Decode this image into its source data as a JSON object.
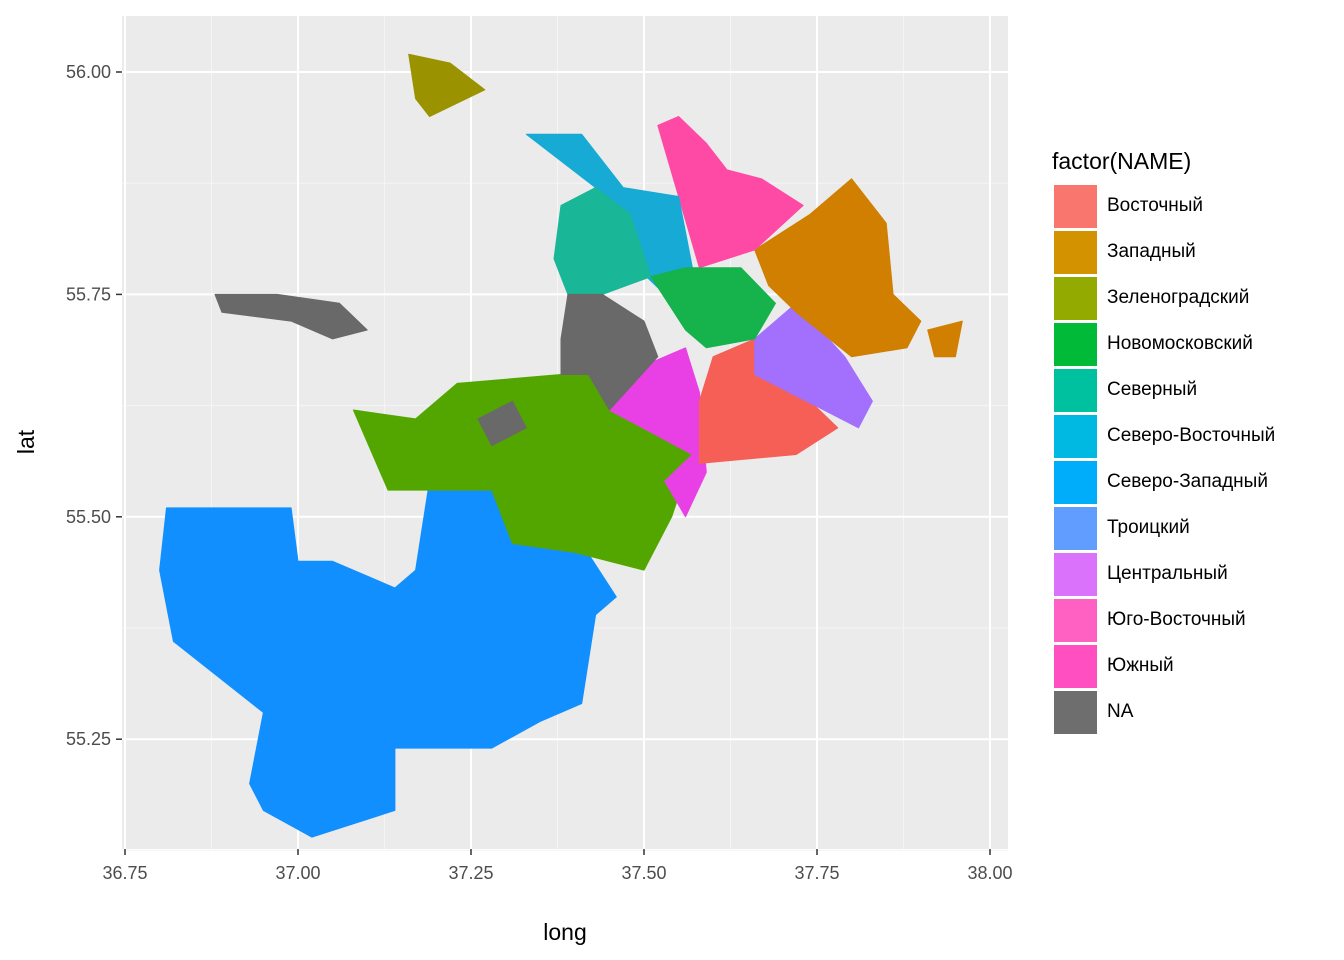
{
  "chart_data": {
    "type": "map",
    "title": "",
    "xlabel": "long",
    "ylabel": "lat",
    "xlim": [
      36.75,
      38.0
    ],
    "ylim": [
      55.12,
      56.06
    ],
    "x_ticks": [
      "36.75",
      "37.00",
      "37.25",
      "37.50",
      "37.75",
      "38.00"
    ],
    "y_ticks": [
      "55.25",
      "55.50",
      "55.75",
      "56.00"
    ],
    "grid": true,
    "legend_position": "right",
    "legend_title": "factor(NAME)",
    "legend": [
      {
        "name": "Восточный",
        "color": "#F8766D"
      },
      {
        "name": "Западный",
        "color": "#D39200"
      },
      {
        "name": "Зеленоградский",
        "color": "#93AA00"
      },
      {
        "name": "Новомосковский",
        "color": "#00BA38"
      },
      {
        "name": "Северный",
        "color": "#00C19F"
      },
      {
        "name": "Северо-Восточный",
        "color": "#00B9E3"
      },
      {
        "name": "Северо-Западный",
        "color": "#00ADFA"
      },
      {
        "name": "Троицкий",
        "color": "#619CFF"
      },
      {
        "name": "Центральный",
        "color": "#DB72FB"
      },
      {
        "name": "Юго-Восточный",
        "color": "#FF61C3"
      },
      {
        "name": "Южный",
        "color": "#FF4FC0"
      },
      {
        "name": "NA",
        "color": "#6E6E6E"
      }
    ],
    "regions": [
      {
        "name": "Троицкий",
        "fill": "#118FFF",
        "coords": [
          [
            36.81,
            55.51
          ],
          [
            36.99,
            55.51
          ],
          [
            37.0,
            55.45
          ],
          [
            37.05,
            55.45
          ],
          [
            37.14,
            55.42
          ],
          [
            37.17,
            55.44
          ],
          [
            37.19,
            55.54
          ],
          [
            37.4,
            55.54
          ],
          [
            37.41,
            55.47
          ],
          [
            37.46,
            55.41
          ],
          [
            37.43,
            55.39
          ],
          [
            37.41,
            55.29
          ],
          [
            37.35,
            55.27
          ],
          [
            37.28,
            55.24
          ],
          [
            37.14,
            55.24
          ],
          [
            37.14,
            55.17
          ],
          [
            37.02,
            55.14
          ],
          [
            36.95,
            55.17
          ],
          [
            36.93,
            55.2
          ],
          [
            36.95,
            55.28
          ],
          [
            36.82,
            55.36
          ],
          [
            36.8,
            55.44
          ]
        ]
      },
      {
        "name": "Новомосковский",
        "fill": "#53A600",
        "coords": [
          [
            37.08,
            55.62
          ],
          [
            37.17,
            55.61
          ],
          [
            37.23,
            55.65
          ],
          [
            37.38,
            55.66
          ],
          [
            37.42,
            55.66
          ],
          [
            37.45,
            55.62
          ],
          [
            37.57,
            55.57
          ],
          [
            37.54,
            55.5
          ],
          [
            37.5,
            55.44
          ],
          [
            37.4,
            55.46
          ],
          [
            37.31,
            55.47
          ],
          [
            37.28,
            55.53
          ],
          [
            37.13,
            55.53
          ]
        ]
      },
      {
        "name": "Юго-Восточный",
        "fill": "#E940E6",
        "coords": [
          [
            37.45,
            55.62
          ],
          [
            37.5,
            55.67
          ],
          [
            37.56,
            55.69
          ],
          [
            37.58,
            55.64
          ],
          [
            37.59,
            55.55
          ],
          [
            37.56,
            55.5
          ],
          [
            37.53,
            55.54
          ],
          [
            37.57,
            55.57
          ]
        ]
      },
      {
        "name": "Восточный",
        "fill": "#F55F55",
        "coords": [
          [
            37.6,
            55.68
          ],
          [
            37.66,
            55.7
          ],
          [
            37.71,
            55.68
          ],
          [
            37.7,
            55.66
          ],
          [
            37.78,
            55.6
          ],
          [
            37.72,
            55.57
          ],
          [
            37.58,
            55.56
          ],
          [
            37.58,
            55.63
          ]
        ]
      },
      {
        "name": "Центральный",
        "fill": "#A270FC",
        "coords": [
          [
            37.66,
            55.7
          ],
          [
            37.72,
            55.74
          ],
          [
            37.79,
            55.68
          ],
          [
            37.83,
            55.63
          ],
          [
            37.81,
            55.6
          ],
          [
            37.71,
            55.64
          ],
          [
            37.66,
            55.66
          ]
        ]
      },
      {
        "name": "Западный",
        "fill": "#D07F00",
        "coords": [
          [
            37.66,
            55.8
          ],
          [
            37.74,
            55.84
          ],
          [
            37.8,
            55.88
          ],
          [
            37.85,
            55.83
          ],
          [
            37.86,
            55.75
          ],
          [
            37.9,
            55.72
          ],
          [
            37.88,
            55.69
          ],
          [
            37.8,
            55.68
          ],
          [
            37.72,
            55.73
          ],
          [
            37.68,
            55.76
          ]
        ]
      },
      {
        "name": "Южный",
        "fill": "#FF4AA5",
        "coords": [
          [
            37.52,
            55.94
          ],
          [
            37.55,
            55.95
          ],
          [
            37.59,
            55.92
          ],
          [
            37.62,
            55.89
          ],
          [
            37.67,
            55.88
          ],
          [
            37.73,
            55.85
          ],
          [
            37.66,
            55.8
          ],
          [
            37.58,
            55.78
          ],
          [
            37.55,
            55.86
          ]
        ]
      },
      {
        "name": "Северо-Западный",
        "fill": "#16AAD4",
        "coords": [
          [
            37.33,
            55.93
          ],
          [
            37.41,
            55.93
          ],
          [
            37.47,
            55.87
          ],
          [
            37.55,
            55.86
          ],
          [
            37.57,
            55.78
          ],
          [
            37.53,
            55.75
          ],
          [
            37.49,
            55.78
          ],
          [
            37.48,
            55.84
          ]
        ]
      },
      {
        "name": "Северо-Восточный",
        "fill": "#19B797",
        "coords": [
          [
            37.38,
            55.85
          ],
          [
            37.43,
            55.87
          ],
          [
            37.48,
            55.84
          ],
          [
            37.51,
            55.77
          ],
          [
            37.44,
            55.75
          ],
          [
            37.39,
            55.75
          ],
          [
            37.37,
            55.79
          ]
        ]
      },
      {
        "name": "Северный",
        "fill": "#16B24C",
        "coords": [
          [
            37.51,
            55.77
          ],
          [
            37.56,
            55.78
          ],
          [
            37.64,
            55.78
          ],
          [
            37.69,
            55.74
          ],
          [
            37.66,
            55.7
          ],
          [
            37.59,
            55.69
          ],
          [
            37.56,
            55.71
          ]
        ]
      },
      {
        "name": "Зеленоградский",
        "fill": "#9B9200",
        "coords": [
          [
            37.16,
            56.02
          ],
          [
            37.22,
            56.01
          ],
          [
            37.27,
            55.98
          ],
          [
            37.19,
            55.95
          ],
          [
            37.17,
            55.97
          ]
        ]
      },
      {
        "name": "NA",
        "fill": "#696969",
        "coords": [
          [
            37.39,
            55.75
          ],
          [
            37.44,
            55.75
          ],
          [
            37.5,
            55.72
          ],
          [
            37.52,
            55.68
          ],
          [
            37.45,
            55.62
          ],
          [
            37.42,
            55.66
          ],
          [
            37.38,
            55.66
          ],
          [
            37.38,
            55.7
          ]
        ]
      },
      {
        "name": "NA",
        "fill": "#696969",
        "coords": [
          [
            37.26,
            55.61
          ],
          [
            37.31,
            55.63
          ],
          [
            37.33,
            55.6
          ],
          [
            37.28,
            55.58
          ]
        ]
      },
      {
        "name": "NA",
        "fill": "#696969",
        "coords": [
          [
            36.88,
            55.75
          ],
          [
            36.97,
            55.75
          ],
          [
            37.06,
            55.74
          ],
          [
            37.1,
            55.71
          ],
          [
            37.05,
            55.7
          ],
          [
            36.99,
            55.72
          ],
          [
            36.89,
            55.73
          ]
        ]
      },
      {
        "name": "Южный",
        "fill": "#D07F00",
        "coords": [
          [
            37.91,
            55.71
          ],
          [
            37.96,
            55.72
          ],
          [
            37.95,
            55.68
          ],
          [
            37.92,
            55.68
          ]
        ]
      }
    ]
  }
}
